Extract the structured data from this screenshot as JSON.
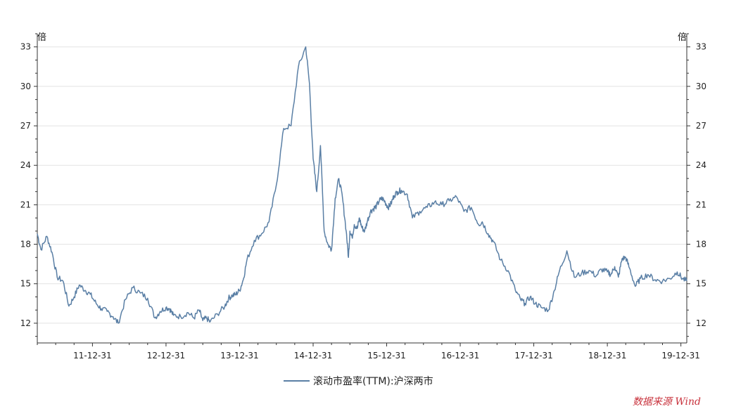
{
  "chart_data": {
    "type": "line",
    "y_unit_left": "倍",
    "y_unit_right": "倍",
    "ylim": [
      10.5,
      34
    ],
    "yticks": [
      12,
      15,
      18,
      21,
      24,
      27,
      30,
      33
    ],
    "xlim": [
      2011.25,
      2020.08
    ],
    "xticks": [
      {
        "value": 2012.0,
        "label": "11-12-31"
      },
      {
        "value": 2013.0,
        "label": "12-12-31"
      },
      {
        "value": 2014.0,
        "label": "13-12-31"
      },
      {
        "value": 2015.0,
        "label": "14-12-31"
      },
      {
        "value": 2016.0,
        "label": "15-12-31"
      },
      {
        "value": 2017.0,
        "label": "16-12-31"
      },
      {
        "value": 2018.0,
        "label": "17-12-31"
      },
      {
        "value": 2019.0,
        "label": "18-12-31"
      },
      {
        "value": 2020.0,
        "label": "19-12-31"
      }
    ],
    "grid": "horizontal",
    "legend_position": "bottom",
    "series": [
      {
        "name": "滚动市盈率(TTM):沪深两市",
        "color": "#5a7fa5",
        "x": [
          2011.25,
          2011.3,
          2011.38,
          2011.45,
          2011.52,
          2011.6,
          2011.68,
          2011.75,
          2011.82,
          2011.9,
          2011.97,
          2012.05,
          2012.12,
          2012.2,
          2012.28,
          2012.35,
          2012.45,
          2012.55,
          2012.65,
          2012.75,
          2012.85,
          2012.92,
          2013.0,
          2013.05,
          2013.1,
          2013.2,
          2013.3,
          2013.38,
          2013.45,
          2013.5,
          2013.55,
          2013.6,
          2013.7,
          2013.8,
          2013.85,
          2013.9,
          2013.95,
          2014.0,
          2014.05,
          2014.1,
          2014.2,
          2014.3,
          2014.4,
          2014.5,
          2014.6,
          2014.7,
          2014.8,
          2014.9,
          2014.95,
          2015.0,
          2015.05,
          2015.1,
          2015.15,
          2015.2,
          2015.25,
          2015.3,
          2015.35,
          2015.4,
          2015.45,
          2015.48,
          2015.5,
          2015.53,
          2015.56,
          2015.6,
          2015.63,
          2015.66,
          2015.7,
          2015.74,
          2015.78,
          2015.82,
          2015.86,
          2015.9,
          2015.94,
          2015.98,
          2016.02,
          2016.06,
          2016.1,
          2016.15,
          2016.2,
          2016.28,
          2016.35,
          2016.45,
          2016.55,
          2016.65,
          2016.75,
          2016.85,
          2016.95,
          2017.05,
          2017.15,
          2017.25,
          2017.3,
          2017.38,
          2017.45,
          2017.55,
          2017.65,
          2017.75,
          2017.82,
          2017.88,
          2017.95,
          2018.02,
          2018.1,
          2018.2,
          2018.28,
          2018.35,
          2018.45,
          2018.55,
          2018.65,
          2018.75,
          2018.85,
          2018.92,
          2019.0,
          2019.05,
          2019.1,
          2019.15,
          2019.2,
          2019.25,
          2019.3,
          2019.38,
          2019.45,
          2019.55,
          2019.65,
          2019.75,
          2019.85,
          2019.95,
          2020.02,
          2020.08
        ],
        "y": [
          18.8,
          17.6,
          18.6,
          17.4,
          15.5,
          15.2,
          13.3,
          14.0,
          14.9,
          14.5,
          14.2,
          13.5,
          13.1,
          12.9,
          12.5,
          12.0,
          13.8,
          14.7,
          14.3,
          13.9,
          12.4,
          12.9,
          13.2,
          13.1,
          12.6,
          12.5,
          12.8,
          12.4,
          13.0,
          12.2,
          12.4,
          12.1,
          12.7,
          13.3,
          13.9,
          14.1,
          14.2,
          14.5,
          15.3,
          16.8,
          18.3,
          18.8,
          19.7,
          22.5,
          26.8,
          27.0,
          31.5,
          33.0,
          30.2,
          24.5,
          22.0,
          25.5,
          19.0,
          18.0,
          17.6,
          21.5,
          23.0,
          21.5,
          19.0,
          17.0,
          19.0,
          18.5,
          19.5,
          19.2,
          20.0,
          19.3,
          19.0,
          19.8,
          20.5,
          20.7,
          20.9,
          21.3,
          21.5,
          21.2,
          20.8,
          21.1,
          21.7,
          22.0,
          22.1,
          21.8,
          20.0,
          20.5,
          20.8,
          21.2,
          21.0,
          21.3,
          21.6,
          20.5,
          20.8,
          19.5,
          19.7,
          18.8,
          18.2,
          16.8,
          16.0,
          14.5,
          13.8,
          13.5,
          14.0,
          13.5,
          13.2,
          13.0,
          14.5,
          16.0,
          17.5,
          15.5,
          15.8,
          16.0,
          15.6,
          16.1,
          15.9,
          15.7,
          16.3,
          15.5,
          16.9,
          17.0,
          16.2,
          14.8,
          15.4,
          15.7,
          15.3,
          15.2,
          15.4,
          15.9,
          15.4,
          15.2
        ]
      }
    ],
    "source_label": "数据来源 Wind"
  }
}
